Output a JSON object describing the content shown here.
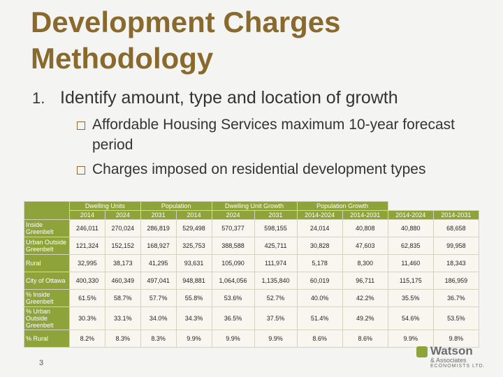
{
  "title": "Development Charges Methodology",
  "item": {
    "number": "1.",
    "text": "Identify amount, type and location of growth"
  },
  "bullets": [
    "Affordable Housing Services maximum 10-year forecast period",
    "Charges imposed on residential development types"
  ],
  "table": {
    "groups": [
      "Dwelling Units",
      "Population",
      "Dwelling Unit Growth",
      "Population Growth"
    ],
    "columns": [
      "2014",
      "2024",
      "2031",
      "2014",
      "2024",
      "2031",
      "2014-2024",
      "2014-2031",
      "2014-2024",
      "2014-2031"
    ],
    "rows": [
      {
        "label": "Inside Greenbelt",
        "cells": [
          "246,011",
          "270,024",
          "286,819",
          "529,498",
          "570,377",
          "598,155",
          "24,014",
          "40,808",
          "40,880",
          "68,658"
        ]
      },
      {
        "label": "Urban Outside Greenbelt",
        "cells": [
          "121,324",
          "152,152",
          "168,927",
          "325,753",
          "388,588",
          "425,711",
          "30,828",
          "47,603",
          "62,835",
          "99,958"
        ]
      },
      {
        "label": "Rural",
        "cells": [
          "32,995",
          "38,173",
          "41,295",
          "93,631",
          "105,090",
          "111,974",
          "5,178",
          "8,300",
          "11,460",
          "18,343"
        ]
      },
      {
        "label": "City of Ottawa",
        "cells": [
          "400,330",
          "460,349",
          "497,041",
          "948,881",
          "1,064,056",
          "1,135,840",
          "60,019",
          "96,711",
          "115,175",
          "186,959"
        ]
      },
      {
        "label": "% Inside Greenbelt",
        "cells": [
          "61.5%",
          "58.7%",
          "57.7%",
          "55.8%",
          "53.6%",
          "52.7%",
          "40.0%",
          "42.2%",
          "35.5%",
          "36.7%"
        ]
      },
      {
        "label": "% Urban Outside Greenbelt",
        "cells": [
          "30.3%",
          "33.1%",
          "34.0%",
          "34.3%",
          "36.5%",
          "37.5%",
          "51.4%",
          "49.2%",
          "54.6%",
          "53.5%"
        ]
      },
      {
        "label": "% Rural",
        "cells": [
          "8.2%",
          "8.3%",
          "8.3%",
          "9.9%",
          "9.9%",
          "9.9%",
          "8.6%",
          "8.6%",
          "9.9%",
          "9.8%"
        ]
      }
    ]
  },
  "page_number": "3",
  "logo": {
    "name": "Watson",
    "sub": "& Associates",
    "tag": "ECONOMISTS LTD."
  }
}
